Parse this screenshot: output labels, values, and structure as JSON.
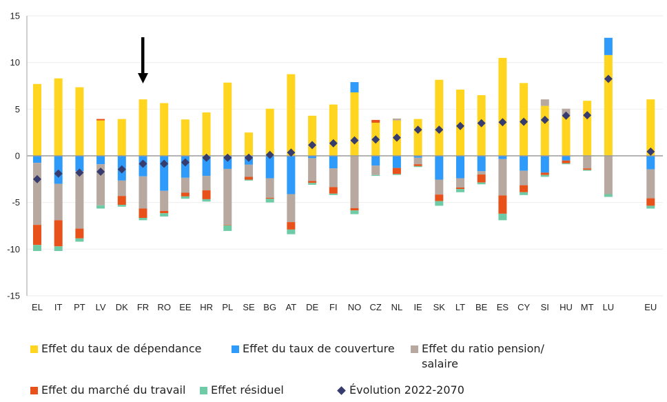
{
  "chart_data": {
    "type": "bar",
    "stacked": true,
    "title": "",
    "xlabel": "",
    "ylabel": "",
    "ylim": [
      -15,
      15
    ],
    "yticks": [
      15,
      10,
      5,
      0,
      -5,
      -10,
      -15
    ],
    "grid": true,
    "legend_position": "bottom",
    "categories": [
      "EL",
      "IT",
      "PT",
      "LV",
      "DK",
      "FR",
      "RO",
      "EE",
      "HR",
      "PL",
      "SE",
      "BG",
      "AT",
      "DE",
      "FI",
      "NO",
      "CZ",
      "NL",
      "IE",
      "SK",
      "LT",
      "BE",
      "ES",
      "CY",
      "SI",
      "HU",
      "MT",
      "LU",
      "",
      "EU"
    ],
    "series": [
      {
        "name": "Effet du taux de dépendance",
        "key": "dep",
        "color": "#FFD520",
        "values": [
          7.7,
          8.3,
          7.35,
          3.8,
          3.95,
          6.05,
          5.65,
          3.9,
          4.65,
          7.85,
          2.5,
          5.05,
          8.75,
          4.3,
          5.5,
          6.8,
          3.55,
          3.8,
          3.95,
          8.15,
          7.1,
          6.5,
          10.5,
          7.8,
          5.35,
          4.35,
          5.9,
          10.8,
          null,
          6.05
        ]
      },
      {
        "name": "Effet du taux de couverture",
        "key": "cov",
        "color": "#2E9BFA",
        "values": [
          -0.75,
          -3.0,
          -1.65,
          -0.9,
          -2.65,
          -2.2,
          -3.75,
          -2.35,
          -2.15,
          -1.4,
          -0.95,
          -2.4,
          -4.1,
          -0.25,
          -1.35,
          1.1,
          -1.05,
          -1.3,
          -0.2,
          -2.55,
          -2.4,
          -1.65,
          -0.35,
          -1.6,
          -1.8,
          -0.5,
          0,
          1.85,
          null,
          -1.45
        ]
      },
      {
        "name": "Effet du ratio pension/ salaire",
        "key": "ratio",
        "color": "#B7A8A0",
        "values": [
          -6.65,
          -3.9,
          -6.15,
          -4.4,
          -1.65,
          -3.45,
          -2.15,
          -1.6,
          -1.55,
          -6.0,
          -1.3,
          -2.1,
          -3.0,
          -2.45,
          -2.0,
          -5.6,
          -1.0,
          0.2,
          -0.7,
          -1.6,
          -1.0,
          -0.35,
          -3.9,
          -1.55,
          0.7,
          0.7,
          -1.35,
          -4.1,
          null,
          -3.1
        ]
      },
      {
        "name": "Effet du marché du travail",
        "key": "lab",
        "color": "#E8511A",
        "values": [
          -2.15,
          -2.8,
          -1.05,
          0.15,
          -0.95,
          -1.0,
          -0.25,
          -0.4,
          -0.95,
          -0.05,
          -0.3,
          -0.1,
          -0.8,
          -0.2,
          -0.7,
          -0.25,
          0.3,
          -0.65,
          -0.2,
          -0.7,
          -0.15,
          -0.85,
          -1.95,
          -0.75,
          -0.25,
          -0.3,
          -0.15,
          0,
          null,
          -0.8
        ]
      },
      {
        "name": "Effet résiduel",
        "key": "res",
        "color": "#6FCBA6",
        "values": [
          -0.65,
          -0.5,
          -0.35,
          -0.35,
          -0.2,
          -0.25,
          -0.35,
          -0.25,
          -0.25,
          -0.6,
          -0.1,
          -0.4,
          -0.5,
          -0.2,
          -0.15,
          -0.4,
          -0.1,
          -0.1,
          -0.1,
          -0.5,
          -0.35,
          -0.2,
          -0.7,
          -0.3,
          -0.2,
          -0.1,
          -0.1,
          -0.3,
          null,
          -0.3
        ]
      }
    ],
    "markers": {
      "name": "Évolution 2022-2070",
      "color": "#373C6E",
      "values": [
        -2.5,
        -1.9,
        -1.8,
        -1.7,
        -1.45,
        -0.85,
        -0.85,
        -0.7,
        -0.2,
        -0.2,
        -0.2,
        0.1,
        0.35,
        1.15,
        1.35,
        1.65,
        1.75,
        1.95,
        2.8,
        2.8,
        3.2,
        3.5,
        3.6,
        3.65,
        3.85,
        4.3,
        4.35,
        8.25,
        null,
        0.45
      ]
    },
    "annotations": [
      {
        "type": "arrow",
        "direction": "down",
        "target_category": "FR"
      }
    ]
  },
  "legend": {
    "items": [
      {
        "label": "Effet du taux de dépendance",
        "color": "#FFD520",
        "shape": "square"
      },
      {
        "label": "Effet du taux de couverture",
        "color": "#2E9BFA",
        "shape": "square"
      },
      {
        "label": "Effet du ratio pension/\nsalaire",
        "color": "#B7A8A0",
        "shape": "square"
      },
      {
        "label": "Effet du marché du travail",
        "color": "#E8511A",
        "shape": "square"
      },
      {
        "label": "Effet résiduel",
        "color": "#6FCBA6",
        "shape": "square"
      },
      {
        "label": "Évolution 2022-2070",
        "color": "#373C6E",
        "shape": "diamond"
      }
    ]
  }
}
